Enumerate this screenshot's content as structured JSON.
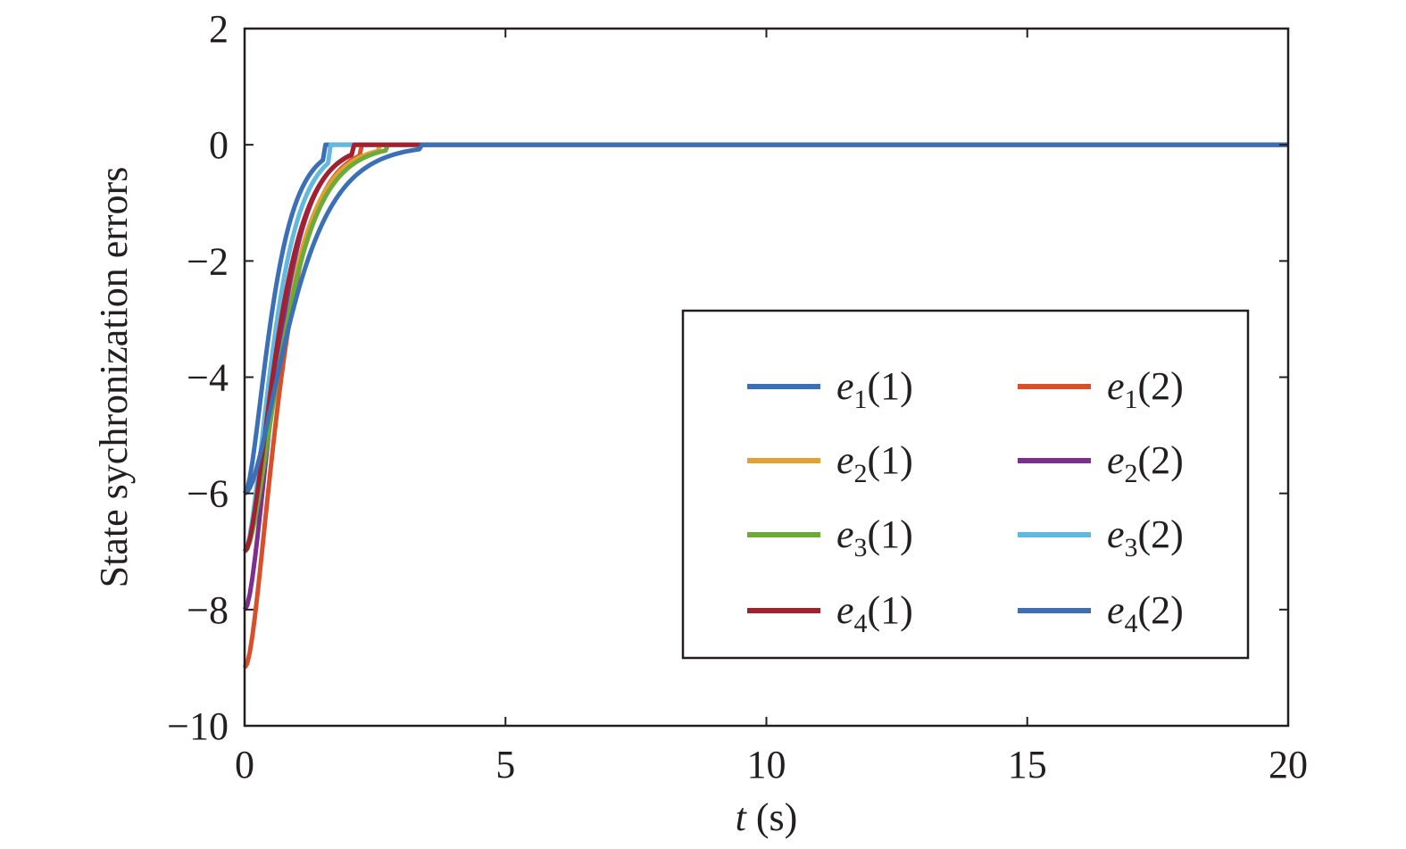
{
  "chart_data": {
    "type": "line",
    "title": "",
    "xlabel": {
      "var": "t",
      "unit": " (s)"
    },
    "ylabel": "State sychronization errors",
    "xlim": [
      0,
      20
    ],
    "ylim": [
      -10,
      2
    ],
    "x_ticks": [
      0,
      5,
      10,
      15,
      20
    ],
    "y_ticks": [
      2,
      0,
      -2,
      -4,
      -6,
      -8,
      -10
    ],
    "x_tick_labels": [
      "0",
      "5",
      "10",
      "15",
      "20"
    ],
    "y_tick_labels": [
      "2",
      "0",
      "−2",
      "−4",
      "−6",
      "−8",
      "−10"
    ],
    "grid": false,
    "legend_position": "center-right",
    "series": [
      {
        "name": "e1(1)",
        "label": {
          "var": "e",
          "sub": "1",
          "arg": "(1)"
        },
        "color": "#3b6fb6",
        "x0": 0,
        "y0": -6,
        "decay": 3.2,
        "overshoot": 0.26,
        "settle": 0.95
      },
      {
        "name": "e1(2)",
        "label": {
          "var": "e",
          "sub": "1",
          "arg": "(2)"
        },
        "color": "#d7502a",
        "x0": 0,
        "y0": -9,
        "decay": 2.6,
        "overshoot": 0.18,
        "settle": 1.4
      },
      {
        "name": "e2(1)",
        "label": {
          "var": "e",
          "sub": "2",
          "arg": "(1)"
        },
        "color": "#e2a231",
        "x0": 0,
        "y0": -7,
        "decay": 2.4,
        "overshoot": 0.08,
        "settle": 1.6
      },
      {
        "name": "e2(2)",
        "label": {
          "var": "e",
          "sub": "2",
          "arg": "(2)"
        },
        "color": "#7b2f8e",
        "x0": 0,
        "y0": -8,
        "decay": 2.8,
        "overshoot": 0.12,
        "settle": 1.3
      },
      {
        "name": "e3(1)",
        "label": {
          "var": "e",
          "sub": "3",
          "arg": "(1)"
        },
        "color": "#6eaa3a",
        "x0": 0,
        "y0": -7,
        "decay": 2.3,
        "overshoot": 0.06,
        "settle": 1.7
      },
      {
        "name": "e3(2)",
        "label": {
          "var": "e",
          "sub": "3",
          "arg": "(2)"
        },
        "color": "#62b9e0",
        "x0": 0,
        "y0": -7,
        "decay": 3.0,
        "overshoot": 0.2,
        "settle": 1.0
      },
      {
        "name": "e4(1)",
        "label": {
          "var": "e",
          "sub": "4",
          "arg": "(1)"
        },
        "color": "#a3212f",
        "x0": 0,
        "y0": -7,
        "decay": 2.7,
        "overshoot": 0.1,
        "settle": 1.3
      },
      {
        "name": "e4(2)",
        "label": {
          "var": "e",
          "sub": "4",
          "arg": "(2)"
        },
        "color": "#3b6fb6",
        "x0": 0,
        "y0": -6,
        "decay": 1.9,
        "overshoot": 0.0,
        "settle": 2.1
      }
    ]
  }
}
